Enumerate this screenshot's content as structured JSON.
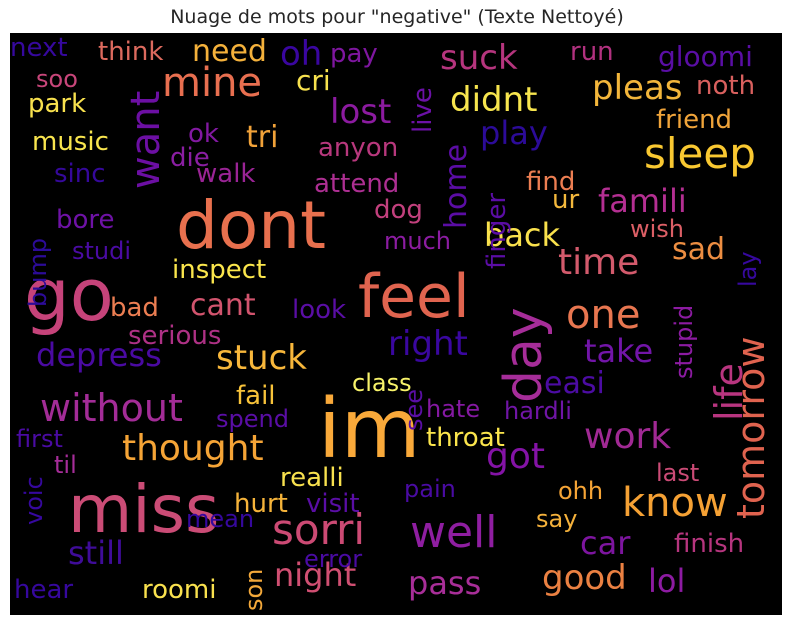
{
  "title": "Nuage de mots pour \"negative\" (Texte Nettoyé)",
  "words": [
    {
      "text": "im",
      "color": "#f9a93a"
    },
    {
      "text": "dont",
      "color": "#e8704e"
    },
    {
      "text": "go",
      "color": "#c6437a"
    },
    {
      "text": "miss",
      "color": "#cb4c76"
    },
    {
      "text": "feel",
      "color": "#e0644f"
    },
    {
      "text": "day",
      "color": "#a62d99"
    },
    {
      "text": "sorri",
      "color": "#cc4a74"
    },
    {
      "text": "well",
      "color": "#8f1ea1"
    },
    {
      "text": "know",
      "color": "#f5a134"
    },
    {
      "text": "tomorrow",
      "color": "#e0634f"
    },
    {
      "text": "life",
      "color": "#b8357f"
    },
    {
      "text": "sleep",
      "color": "#f9c831"
    },
    {
      "text": "want",
      "color": "#6c0fa3"
    },
    {
      "text": "mine",
      "color": "#e86f50"
    },
    {
      "text": "without",
      "color": "#a32c97"
    },
    {
      "text": "one",
      "color": "#e87650"
    },
    {
      "text": "time",
      "color": "#d35a6c"
    },
    {
      "text": "got",
      "color": "#8413a6"
    },
    {
      "text": "work",
      "color": "#a12994"
    },
    {
      "text": "thought",
      "color": "#f5a436"
    },
    {
      "text": "night",
      "color": "#d04f72"
    },
    {
      "text": "good",
      "color": "#eb8142"
    },
    {
      "text": "pass",
      "color": "#a82e98"
    },
    {
      "text": "still",
      "color": "#3f0c99"
    },
    {
      "text": "lol",
      "color": "#8d1ba2"
    },
    {
      "text": "car",
      "color": "#7d159f"
    },
    {
      "text": "right",
      "color": "#3a07a0"
    },
    {
      "text": "stuck",
      "color": "#f8b73b"
    },
    {
      "text": "depress",
      "color": "#4a0aa2"
    },
    {
      "text": "take",
      "color": "#7215a8"
    },
    {
      "text": "back",
      "color": "#f9e14c"
    },
    {
      "text": "famili",
      "color": "#b42f92"
    },
    {
      "text": "lost",
      "color": "#8c1ba0"
    },
    {
      "text": "play",
      "color": "#2c0b99"
    },
    {
      "text": "suck",
      "color": "#b6357e"
    },
    {
      "text": "pleas",
      "color": "#f3b63b"
    },
    {
      "text": "didnt",
      "color": "#f7e54e"
    },
    {
      "text": "need",
      "color": "#f4b13b"
    },
    {
      "text": "oh",
      "color": "#3a06a0"
    },
    {
      "text": "tri",
      "color": "#f1a239"
    },
    {
      "text": "cant",
      "color": "#d2546e"
    },
    {
      "text": "sad",
      "color": "#ed8e42"
    },
    {
      "text": "easi",
      "color": "#4c0ca3"
    },
    {
      "text": "home",
      "color": "#5b0da5"
    },
    {
      "text": "finger",
      "color": "#5b0da5"
    },
    {
      "text": "next",
      "color": "#36089e"
    },
    {
      "text": "think",
      "color": "#dc6a5e"
    },
    {
      "text": "pay",
      "color": "#7e169f"
    },
    {
      "text": "run",
      "color": "#b1317f"
    },
    {
      "text": "gloomi",
      "color": "#5a0ea5"
    },
    {
      "text": "soo",
      "color": "#c8467a"
    },
    {
      "text": "cri",
      "color": "#f7e14e"
    },
    {
      "text": "live",
      "color": "#6b11a6"
    },
    {
      "text": "noth",
      "color": "#d9605e"
    },
    {
      "text": "park",
      "color": "#f8e14e"
    },
    {
      "text": "friend",
      "color": "#f0a43a"
    },
    {
      "text": "music",
      "color": "#f9e54e"
    },
    {
      "text": "ok",
      "color": "#8219a1"
    },
    {
      "text": "die",
      "color": "#8a1ea2"
    },
    {
      "text": "anyon",
      "color": "#b8387d"
    },
    {
      "text": "sinc",
      "color": "#35089b"
    },
    {
      "text": "walk",
      "color": "#9a2495"
    },
    {
      "text": "attend",
      "color": "#ad2f92"
    },
    {
      "text": "find",
      "color": "#ec7e52"
    },
    {
      "text": "dog",
      "color": "#c2407d"
    },
    {
      "text": "ur",
      "color": "#f3b83c"
    },
    {
      "text": "bore",
      "color": "#6e12a6"
    },
    {
      "text": "much",
      "color": "#8c1ca2"
    },
    {
      "text": "wish",
      "color": "#dc5f66"
    },
    {
      "text": "studi",
      "color": "#4a0ba3"
    },
    {
      "text": "bump",
      "color": "#2c0b99"
    },
    {
      "text": "inspect",
      "color": "#fbe64c"
    },
    {
      "text": "lay",
      "color": "#36089e"
    },
    {
      "text": "bad",
      "color": "#ec7e52"
    },
    {
      "text": "look",
      "color": "#5a0ea5"
    },
    {
      "text": "serious",
      "color": "#ae3185"
    },
    {
      "text": "stupid",
      "color": "#8c1ba2"
    },
    {
      "text": "class",
      "color": "#f8f36a"
    },
    {
      "text": "fail",
      "color": "#f8c33a"
    },
    {
      "text": "spend",
      "color": "#5a0ea5"
    },
    {
      "text": "see",
      "color": "#5a0ea5"
    },
    {
      "text": "hate",
      "color": "#8519a2"
    },
    {
      "text": "hardli",
      "color": "#7015a6"
    },
    {
      "text": "first",
      "color": "#4a0ba3"
    },
    {
      "text": "til",
      "color": "#a62d99"
    },
    {
      "text": "voic",
      "color": "#36089e"
    },
    {
      "text": "throat",
      "color": "#fbe54c"
    },
    {
      "text": "realli",
      "color": "#f8e14e"
    },
    {
      "text": "last",
      "color": "#cb4b76"
    },
    {
      "text": "hurt",
      "color": "#f5b33a"
    },
    {
      "text": "visit",
      "color": "#5a0ea5"
    },
    {
      "text": "pain",
      "color": "#4a0ba3"
    },
    {
      "text": "ohh",
      "color": "#f5a436"
    },
    {
      "text": "say",
      "color": "#f4b13b"
    },
    {
      "text": "finish",
      "color": "#b6357e"
    },
    {
      "text": "mean",
      "color": "#36089e"
    },
    {
      "text": "error",
      "color": "#4a0ba3"
    },
    {
      "text": "son",
      "color": "#f3a83a"
    },
    {
      "text": "hear",
      "color": "#36089e"
    },
    {
      "text": "roomi",
      "color": "#f9e14e"
    }
  ]
}
